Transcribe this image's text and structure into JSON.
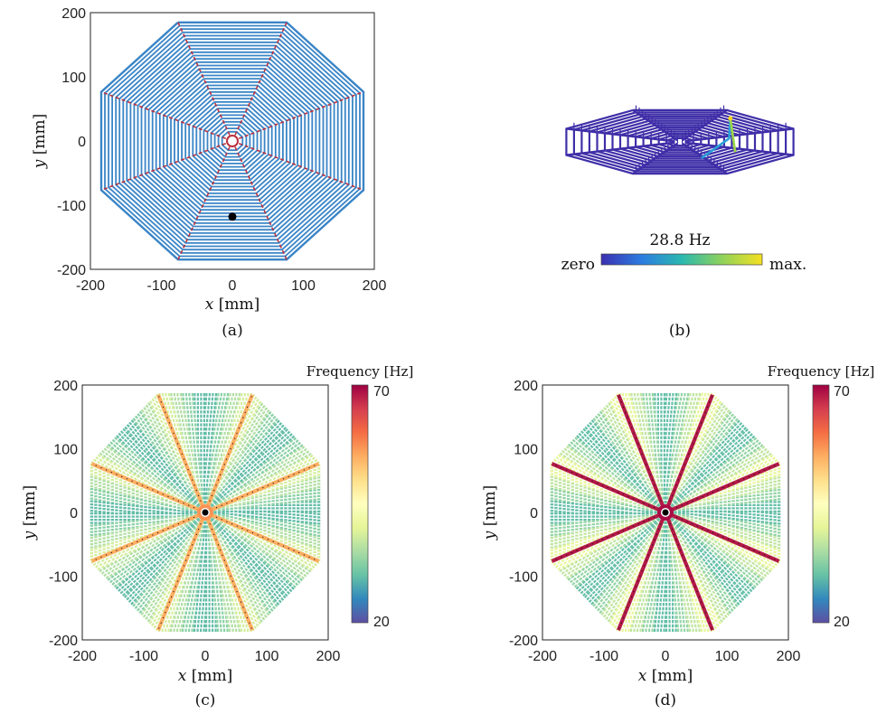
{
  "chart_data": [
    {
      "panel": "a",
      "type": "line",
      "caption": "(a)",
      "xlabel_var": "x",
      "xlabel_unit": "[mm]",
      "ylabel_var": "y",
      "ylabel_unit": "[mm]",
      "xlim": [
        -200,
        200
      ],
      "ylim": [
        -200,
        200
      ],
      "xticks": [
        "-200",
        "-100",
        "0",
        "100",
        "200"
      ],
      "yticks": [
        "-200",
        "-100",
        "0",
        "100",
        "200"
      ],
      "web": {
        "radials": 8,
        "outer_radius": 200,
        "hub_radius": 10,
        "rings": 34
      },
      "marker_point": [
        0,
        -118
      ],
      "colors": {
        "spiral": "#3a85c7",
        "radial": "#b9323f",
        "marker": "#000000"
      }
    },
    {
      "panel": "b",
      "type": "other",
      "caption": "(b)",
      "mode_label": "28.8 Hz",
      "colorbar": {
        "min_label": "zero",
        "max_label": "max.",
        "colors": [
          "#3b2fb0",
          "#2c7ce0",
          "#2ab8b0",
          "#8fd25a",
          "#f5e020"
        ]
      },
      "colors": {
        "web": "#3f2fa8",
        "excited": [
          "#2aa0d8",
          "#9bd848",
          "#f5d820"
        ]
      }
    },
    {
      "panel": "c",
      "type": "heatmap",
      "caption": "(c)",
      "xlabel_var": "x",
      "xlabel_unit": "[mm]",
      "ylabel_var": "y",
      "ylabel_unit": "[mm]",
      "xlim": [
        -200,
        200
      ],
      "ylim": [
        -200,
        200
      ],
      "xticks": [
        "-200",
        "-100",
        "0",
        "100",
        "200"
      ],
      "yticks": [
        "-200",
        "-100",
        "0",
        "100",
        "200"
      ],
      "colorbar": {
        "title": "Frequency [Hz]",
        "min": 20,
        "max": 70,
        "min_label": "20",
        "max_label": "70"
      },
      "frequency_estimates_hz": {
        "radial_threads": 55,
        "hub": 57,
        "spiral_near_radials": 40,
        "spiral_mid_span": 28
      }
    },
    {
      "panel": "d",
      "type": "heatmap",
      "caption": "(d)",
      "xlabel_var": "x",
      "xlabel_unit": "[mm]",
      "ylabel_var": "y",
      "ylabel_unit": "[mm]",
      "xlim": [
        -200,
        200
      ],
      "ylim": [
        -200,
        200
      ],
      "xticks": [
        "-200",
        "-100",
        "0",
        "100",
        "200"
      ],
      "yticks": [
        "-200",
        "-100",
        "0",
        "100",
        "200"
      ],
      "colorbar": {
        "title": "Frequency [Hz]",
        "min": 20,
        "max": 70,
        "min_label": "20",
        "max_label": "70"
      },
      "frequency_estimates_hz": {
        "radial_threads": 68,
        "hub": 69,
        "spiral_near_radials": 42,
        "spiral_mid_span": 28
      }
    }
  ]
}
